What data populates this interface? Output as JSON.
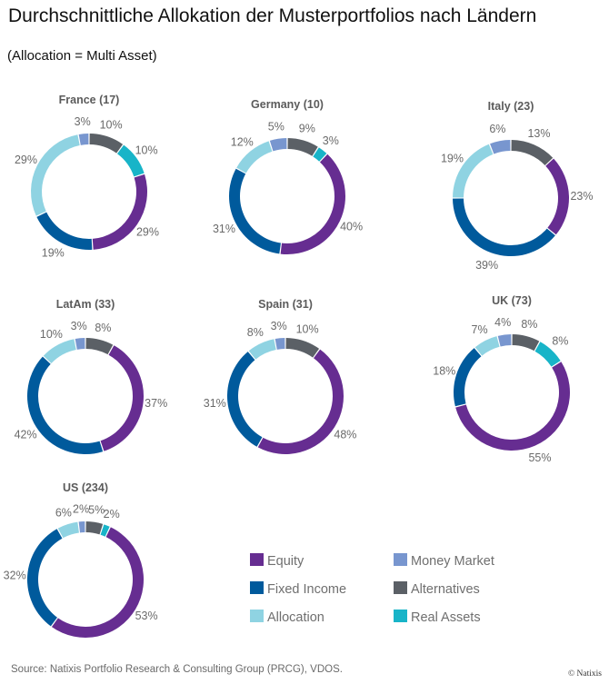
{
  "chart_data": {
    "type": "pie",
    "variant": "donut",
    "title": "Durchschnittliche Allokation der Musterportfolios nach Ländern",
    "subtitle": "(Allocation = Multi Asset)",
    "categories": [
      "Alternatives",
      "Real Assets",
      "Equity",
      "Fixed Income",
      "Allocation",
      "Money Market"
    ],
    "colors": {
      "Equity": "#662d91",
      "Fixed Income": "#005a9c",
      "Allocation": "#8fd3e2",
      "Money Market": "#7896cf",
      "Alternatives": "#5b6066",
      "Real Assets": "#18b4c8"
    },
    "charts": [
      {
        "name": "France",
        "count": 17,
        "label": "France (17)",
        "values": {
          "Alternatives": 10,
          "Real Assets": 10,
          "Equity": 29,
          "Fixed Income": 19,
          "Allocation": 29,
          "Money Market": 3
        }
      },
      {
        "name": "Germany",
        "count": 10,
        "label": "Germany (10)",
        "values": {
          "Alternatives": 9,
          "Real Assets": 3,
          "Equity": 40,
          "Fixed Income": 31,
          "Allocation": 12,
          "Money Market": 5
        }
      },
      {
        "name": "Italy",
        "count": 23,
        "label": "Italy (23)",
        "values": {
          "Alternatives": 13,
          "Real Assets": 0,
          "Equity": 23,
          "Fixed Income": 39,
          "Allocation": 19,
          "Money Market": 6
        }
      },
      {
        "name": "LatAm",
        "count": 33,
        "label": "LatAm (33)",
        "values": {
          "Alternatives": 8,
          "Real Assets": 0,
          "Equity": 37,
          "Fixed Income": 42,
          "Allocation": 10,
          "Money Market": 3
        }
      },
      {
        "name": "Spain",
        "count": 31,
        "label": "Spain (31)",
        "values": {
          "Alternatives": 10,
          "Real Assets": 0,
          "Equity": 48,
          "Fixed Income": 31,
          "Allocation": 8,
          "Money Market": 3
        }
      },
      {
        "name": "UK",
        "count": 73,
        "label": "UK (73)",
        "values": {
          "Alternatives": 8,
          "Real Assets": 8,
          "Equity": 55,
          "Fixed Income": 18,
          "Allocation": 7,
          "Money Market": 4
        }
      },
      {
        "name": "US",
        "count": 234,
        "label": "US (234)",
        "values": {
          "Alternatives": 5,
          "Real Assets": 2,
          "Equity": 53,
          "Fixed Income": 32,
          "Allocation": 6,
          "Money Market": 2
        }
      }
    ],
    "legend": {
      "placement": "bottom-right",
      "items": [
        "Equity",
        "Fixed Income",
        "Allocation",
        "Money Market",
        "Alternatives",
        "Real Assets"
      ]
    }
  },
  "footer": {
    "source": "Source: Natixis Portfolio Research & Consulting Group (PRCG), VDOS.",
    "copyright": "© Natixis"
  }
}
